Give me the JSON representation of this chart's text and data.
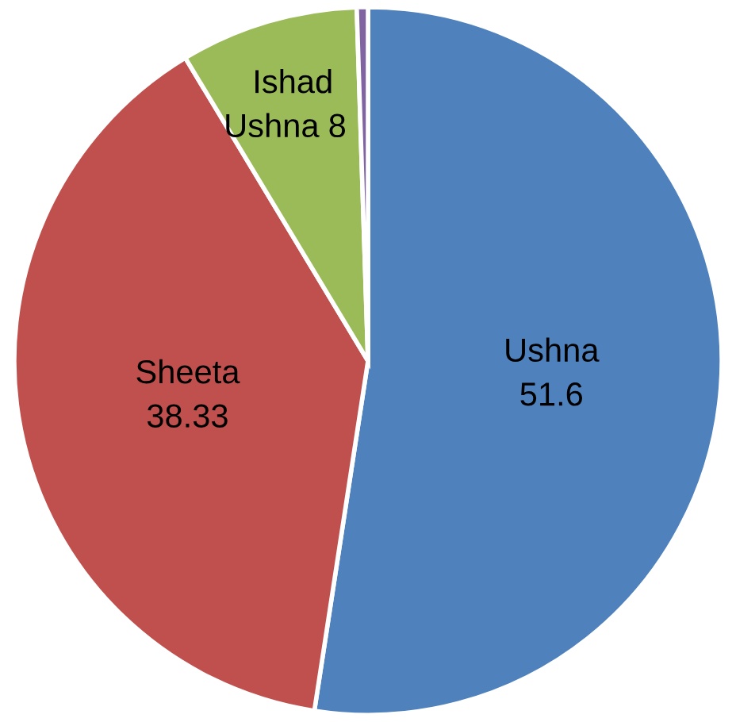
{
  "chart_data": {
    "type": "pie",
    "categories": [
      "Ushna",
      "Sheeta",
      "Ishad Ushna",
      null
    ],
    "values": [
      51.6,
      38.33,
      8,
      0.5
    ],
    "colors": [
      "#4f81bd",
      "#c0504d",
      "#9bbb59",
      "#8064a2"
    ],
    "value_labels": [
      "51.6",
      "38.33",
      "8",
      null
    ]
  }
}
